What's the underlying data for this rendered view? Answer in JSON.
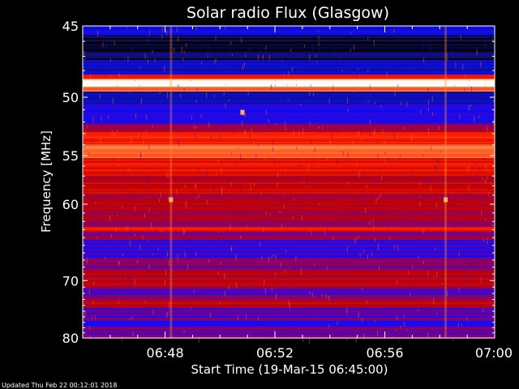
{
  "chart_data": {
    "type": "heatmap",
    "title": "Solar radio Flux (Glasgow)",
    "xlabel": "Start Time (19-Mar-15 06:45:00)",
    "ylabel": "Frequency [MHz]",
    "x_tick_labels": [
      "06:48",
      "06:52",
      "06:56",
      "07:00"
    ],
    "x_ticks_minutes": [
      48,
      52,
      56,
      60
    ],
    "xlim_minutes": [
      45,
      60
    ],
    "y_tick_labels": [
      "45",
      "50",
      "55",
      "60",
      "70",
      "80"
    ],
    "y_ticks": [
      45,
      50,
      55,
      60,
      70,
      80
    ],
    "ylim": [
      45,
      80
    ],
    "y_scale": "reciprocal (1/f)",
    "colormap": [
      "#000000",
      "#10107e",
      "#0b0bff",
      "#7c0080",
      "#c00000",
      "#ff2000",
      "#ff8040",
      "#ffd0a0",
      "#ffffff"
    ],
    "bands": [
      {
        "f_low": 45.0,
        "f_high": 45.6,
        "level": 0.22
      },
      {
        "f_low": 45.6,
        "f_high": 46.3,
        "level": 0.05
      },
      {
        "f_low": 46.3,
        "f_high": 47.3,
        "level": 0.08
      },
      {
        "f_low": 47.3,
        "f_high": 48.3,
        "level": 0.2
      },
      {
        "f_low": 48.3,
        "f_high": 48.7,
        "level": 0.55
      },
      {
        "f_low": 48.7,
        "f_high": 49.2,
        "level": 1.0
      },
      {
        "f_low": 49.2,
        "f_high": 49.6,
        "level": 0.7
      },
      {
        "f_low": 49.6,
        "f_high": 50.6,
        "level": 0.18
      },
      {
        "f_low": 50.6,
        "f_high": 52.2,
        "level": 0.28
      },
      {
        "f_low": 52.2,
        "f_high": 52.9,
        "level": 0.42
      },
      {
        "f_low": 52.9,
        "f_high": 54.0,
        "level": 0.62
      },
      {
        "f_low": 54.0,
        "f_high": 55.3,
        "level": 0.72
      },
      {
        "f_low": 55.3,
        "f_high": 57.0,
        "level": 0.58
      },
      {
        "f_low": 57.0,
        "f_high": 59.0,
        "level": 0.5
      },
      {
        "f_low": 59.0,
        "f_high": 61.0,
        "level": 0.46
      },
      {
        "f_low": 61.0,
        "f_high": 62.7,
        "level": 0.44
      },
      {
        "f_low": 62.7,
        "f_high": 63.3,
        "level": 0.58
      },
      {
        "f_low": 63.3,
        "f_high": 64.3,
        "level": 0.4
      },
      {
        "f_low": 64.3,
        "f_high": 66.7,
        "level": 0.3
      },
      {
        "f_low": 66.7,
        "f_high": 68.5,
        "level": 0.38
      },
      {
        "f_low": 68.5,
        "f_high": 71.0,
        "level": 0.48
      },
      {
        "f_low": 71.0,
        "f_high": 73.0,
        "level": 0.36
      },
      {
        "f_low": 73.0,
        "f_high": 74.5,
        "level": 0.5
      },
      {
        "f_low": 74.5,
        "f_high": 76.5,
        "level": 0.34
      },
      {
        "f_low": 76.5,
        "f_high": 78.0,
        "level": 0.3
      },
      {
        "f_low": 78.0,
        "f_high": 80.0,
        "level": 0.4
      }
    ],
    "features": [
      {
        "kind": "bright-line",
        "frequency": 48.9
      },
      {
        "kind": "time-streak",
        "time_minutes": 48.2
      },
      {
        "kind": "time-streak",
        "time_minutes": 58.2
      },
      {
        "kind": "spot",
        "time_minutes": 50.8,
        "frequency": 51.2
      },
      {
        "kind": "spot",
        "time_minutes": 48.2,
        "frequency": 59.5
      },
      {
        "kind": "spot",
        "time_minutes": 58.2,
        "frequency": 59.5
      }
    ],
    "grid": false,
    "legend": "none"
  },
  "footer": "Updated Thu Feb 22 00:12:01 2018"
}
